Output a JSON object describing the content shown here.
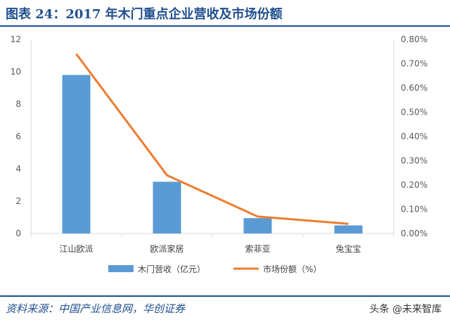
{
  "header": {
    "title": "图表 24：2017 年木门重点企业营收及市场份额"
  },
  "footer": {
    "source": "资料来源：中国产业信息网，华创证券",
    "watermark": "头条 @未来智库"
  },
  "chart_data": {
    "type": "bar",
    "title": "",
    "categories": [
      "江山欧派",
      "欧派家居",
      "索菲亚",
      "兔宝宝"
    ],
    "series": [
      {
        "name": "木门营收（亿元）",
        "type": "bar",
        "axis": "left",
        "values": [
          9.8,
          3.2,
          0.95,
          0.5
        ],
        "color": "#5b9bd5"
      },
      {
        "name": "市场份额（%）",
        "type": "line",
        "axis": "right",
        "values": [
          0.74,
          0.24,
          0.07,
          0.04
        ],
        "color": "#ed7d31"
      }
    ],
    "y_left": {
      "min": 0,
      "max": 12,
      "ticks": [
        0,
        2,
        4,
        6,
        8,
        10,
        12
      ],
      "tick_labels": [
        "0",
        "2",
        "4",
        "6",
        "8",
        "10",
        "12"
      ]
    },
    "y_right": {
      "min": 0,
      "max": 0.8,
      "ticks": [
        0,
        0.1,
        0.2,
        0.3,
        0.4,
        0.5,
        0.6,
        0.7,
        0.8
      ],
      "tick_labels": [
        "0.00%",
        "0.10%",
        "0.20%",
        "0.30%",
        "0.40%",
        "0.50%",
        "0.60%",
        "0.70%",
        "0.80%"
      ]
    },
    "grid": false,
    "legend_position": "bottom"
  }
}
